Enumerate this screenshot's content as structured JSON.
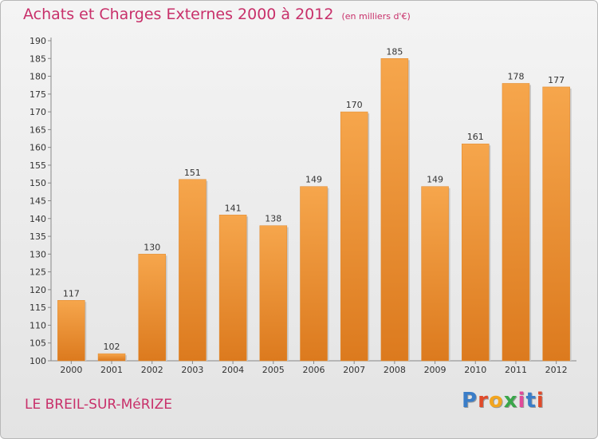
{
  "header": {
    "title": "Achats et Charges Externes 2000 à 2012",
    "unit": "(en milliers d'€)"
  },
  "footer": {
    "commune": "LE BREIL-SUR-MéRIZE",
    "logo_text": "Proxiti",
    "logo_colors": [
      "#3a7dc8",
      "#e04a2a",
      "#f2a51f",
      "#3aa64a",
      "#e04a9a",
      "#3a7dc8",
      "#e04a2a"
    ]
  },
  "chart_data": {
    "type": "bar",
    "title": "Achats et Charges Externes 2000 à 2012",
    "subtitle": "(en milliers d'€)",
    "categories": [
      "2000",
      "2001",
      "2002",
      "2003",
      "2004",
      "2005",
      "2006",
      "2007",
      "2008",
      "2009",
      "2010",
      "2011",
      "2012"
    ],
    "values": [
      117,
      102,
      130,
      151,
      141,
      138,
      149,
      170,
      185,
      149,
      161,
      178,
      177
    ],
    "value_labels": [
      "117",
      "102",
      "130",
      "151",
      "141",
      "138",
      "149",
      "170",
      "185",
      "149",
      "161",
      "178",
      "177"
    ],
    "ylim": [
      100,
      190
    ],
    "yticks": [
      100,
      105,
      110,
      115,
      120,
      125,
      130,
      135,
      140,
      145,
      150,
      155,
      160,
      165,
      170,
      175,
      180,
      185,
      190
    ],
    "grid": false,
    "bar_color": "#f29a3c",
    "bar_color_dark": "#dc7a1e",
    "axis_color": "#888888",
    "label_color": "#333333"
  }
}
